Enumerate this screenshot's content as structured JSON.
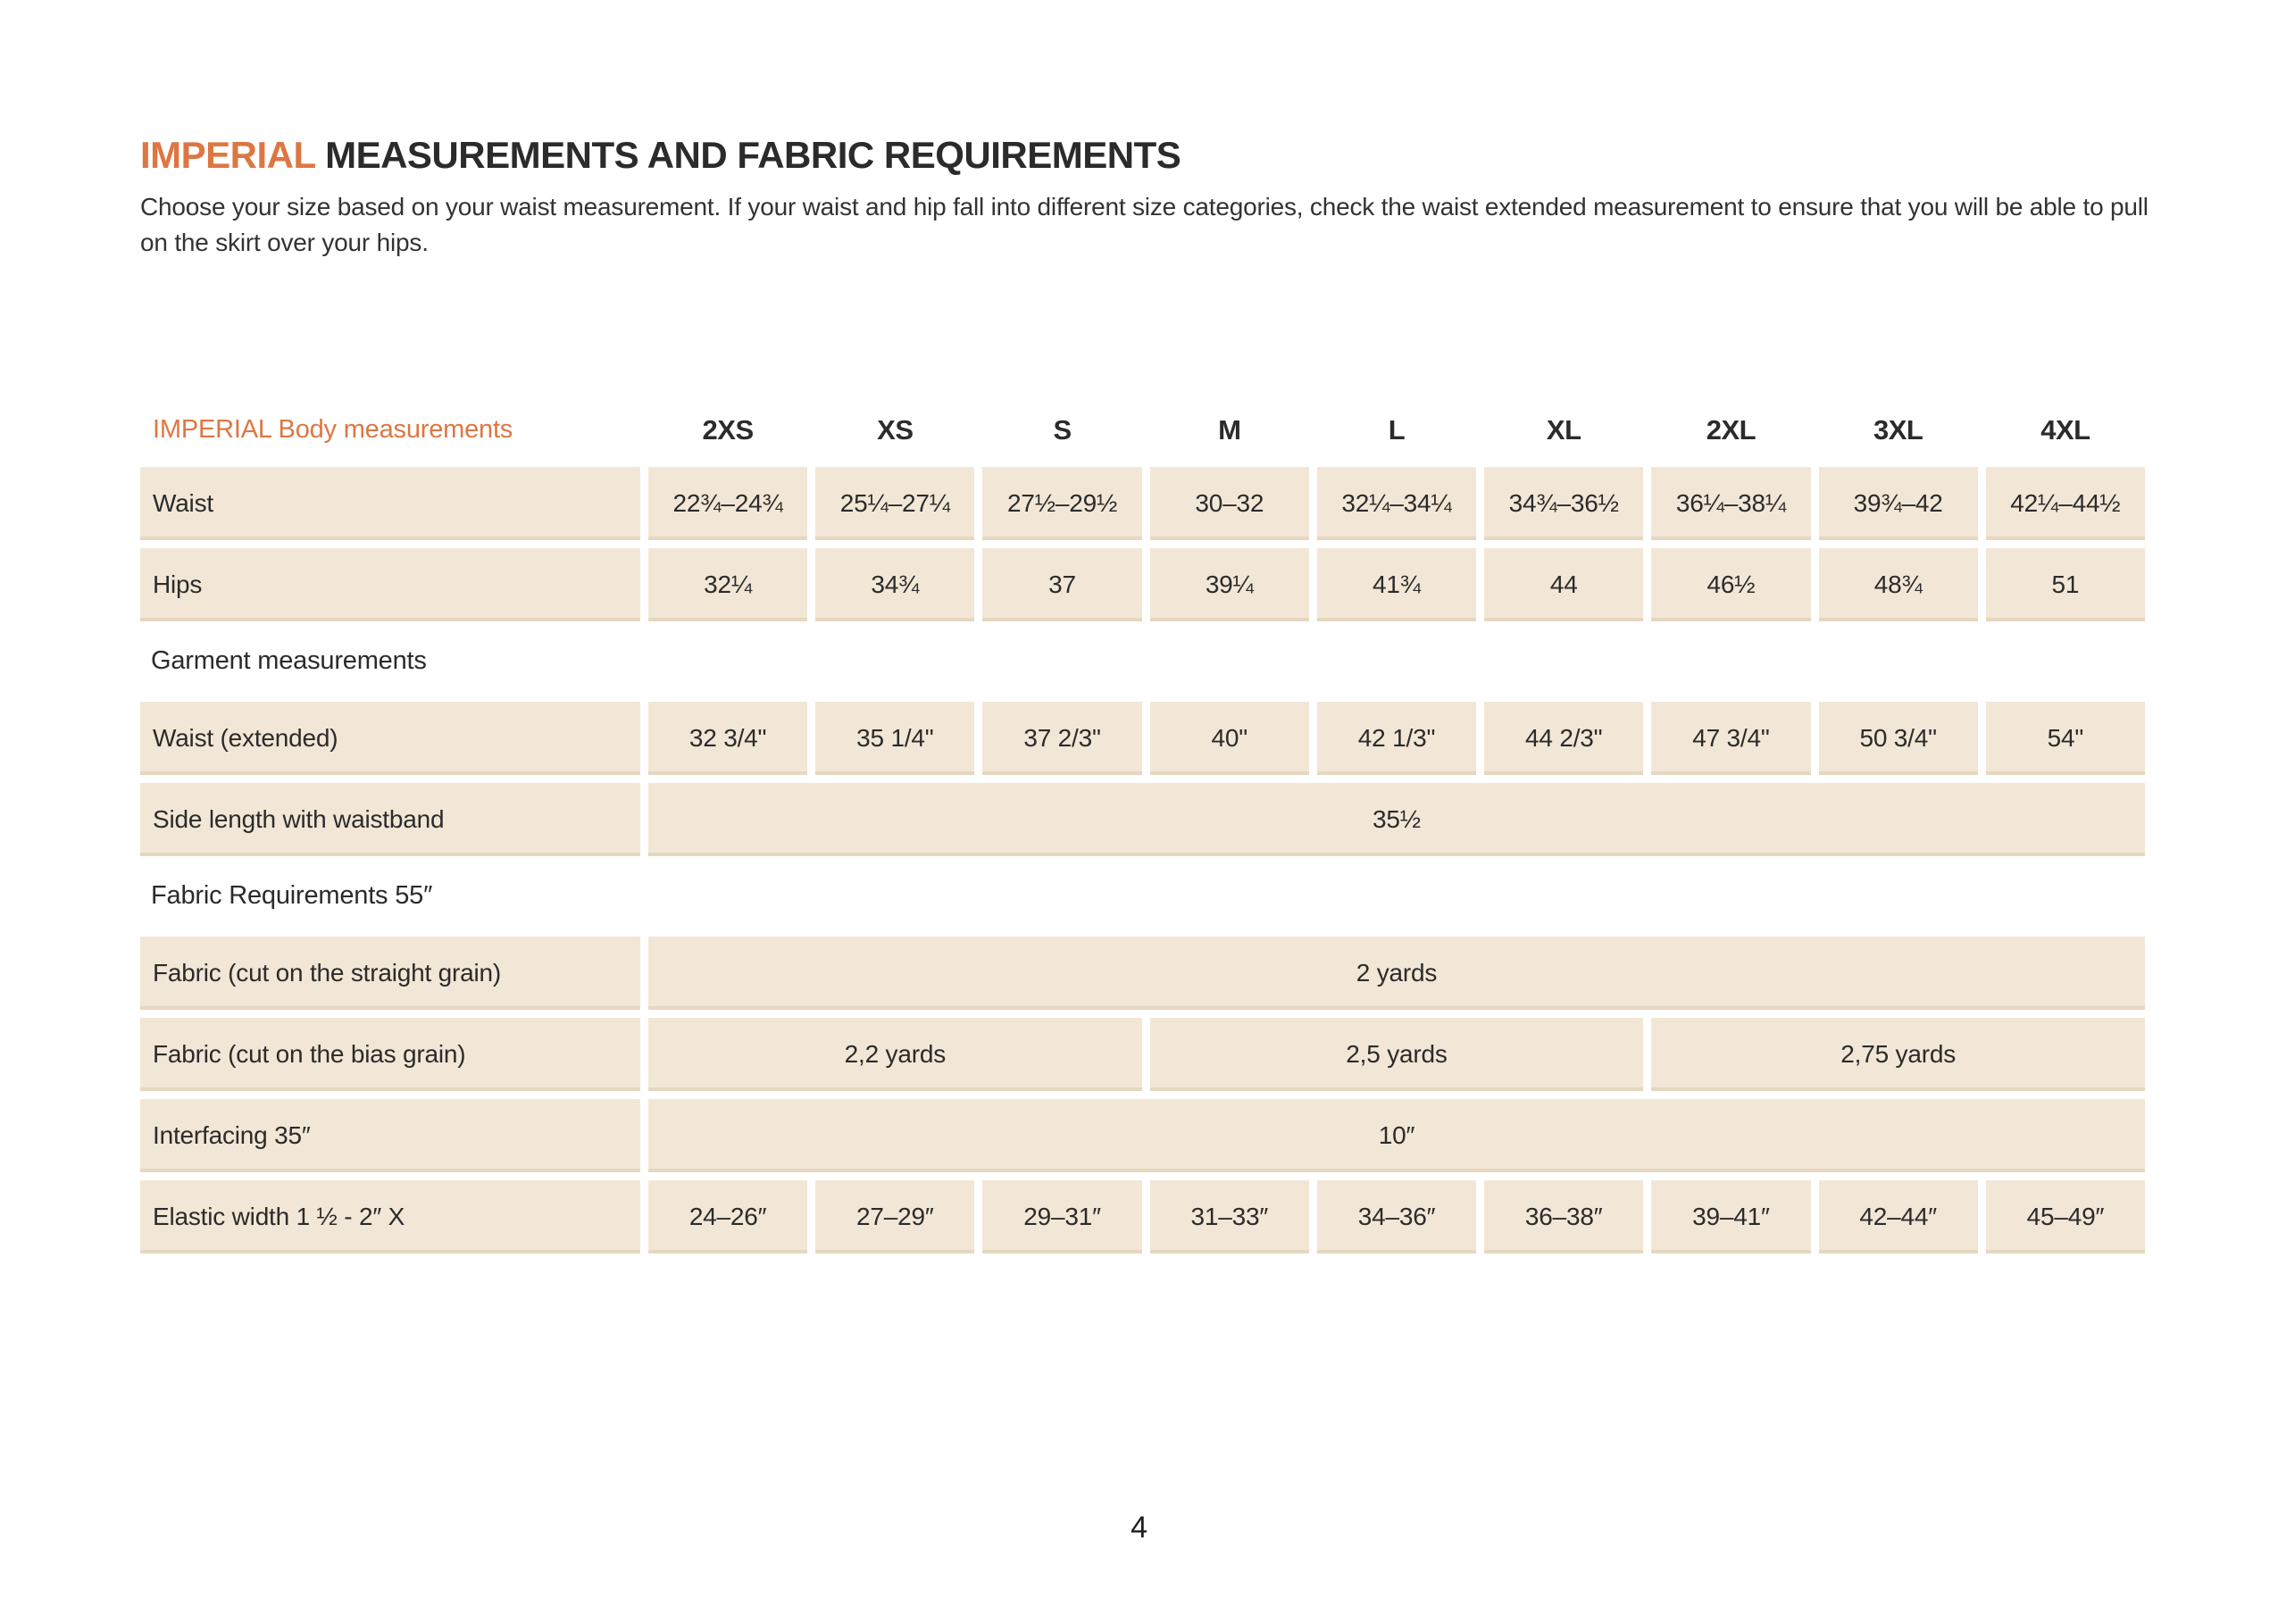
{
  "colors": {
    "accent": "#DD7742",
    "cell_bg": "#F2E7D6",
    "text": "#2B2B2B"
  },
  "page": {
    "title_accent": "IMPERIAL",
    "title_rest": " MEASUREMENTS AND FABRIC REQUIREMENTS",
    "intro": "Choose your size based on your waist measurement. If your waist and hip fall into different size categories, check the waist extended measurement to ensure that you will be able to pull on the skirt over your hips.",
    "page_number": "4"
  },
  "table": {
    "header": {
      "label": "IMPERIAL Body measurements",
      "sizes": [
        "2XS",
        "XS",
        "S",
        "M",
        "L",
        "XL",
        "2XL",
        "3XL",
        "4XL"
      ]
    },
    "rows": [
      {
        "type": "data",
        "label": "Waist",
        "values": [
          "22¾–24¾",
          "25¼–27¼",
          "27½–29½",
          "30–32",
          "32¼–34¼",
          "34¾–36½",
          "36¼–38¼",
          "39¾–42",
          "42¼–44½"
        ]
      },
      {
        "type": "data",
        "label": "Hips",
        "values": [
          "32¼",
          "34¾",
          "37",
          "39¼",
          "41¾",
          "44",
          "46½",
          "48¾",
          "51"
        ]
      },
      {
        "type": "section",
        "label": "Garment measurements"
      },
      {
        "type": "data",
        "label": "Waist (extended)",
        "values": [
          "32 3/4\"",
          "35 1/4\"",
          "37 2/3\"",
          "40\"",
          "42 1/3\"",
          "44 2/3\"",
          "47 3/4\"",
          "50 3/4\"",
          "54\""
        ]
      },
      {
        "type": "span",
        "label": "Side length with waistband",
        "value": "35½"
      },
      {
        "type": "section",
        "label": "Fabric Requirements 55″"
      },
      {
        "type": "span",
        "label": "Fabric (cut on the straight grain)",
        "value": "2 yards"
      },
      {
        "type": "multispan",
        "label": "Fabric (cut on the bias grain)",
        "groups": [
          {
            "value": "2,2 yards",
            "span": 3
          },
          {
            "value": "2,5 yards",
            "span": 3
          },
          {
            "value": "2,75 yards",
            "span": 3
          }
        ]
      },
      {
        "type": "span",
        "label": "Interfacing 35″",
        "value": "10″"
      },
      {
        "type": "data",
        "label": "Elastic width 1 ½ - 2″ X",
        "values": [
          "24–26″",
          "27–29″",
          "29–31″",
          "31–33″",
          "34–36″",
          "36–38″",
          "39–41″",
          "42–44″",
          "45–49″"
        ]
      }
    ]
  }
}
